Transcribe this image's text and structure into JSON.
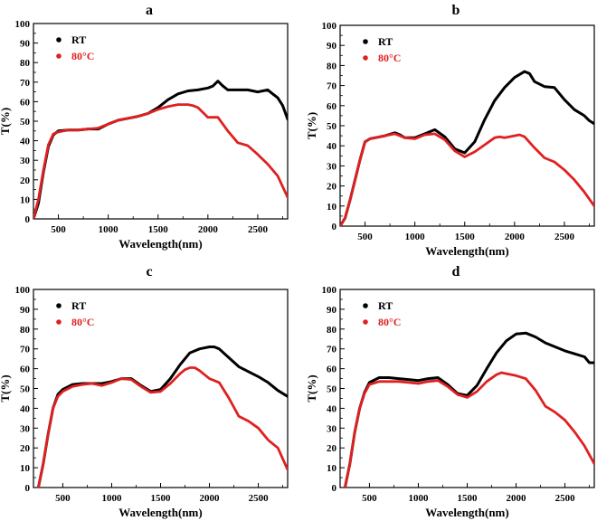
{
  "figure": {
    "panel_letters": [
      "a",
      "b",
      "c",
      "d"
    ]
  },
  "chart_data": [
    {
      "type": "line",
      "panel": "a",
      "title": "a",
      "xlabel": "Wavelength(nm)",
      "ylabel": "T(%)",
      "xlim": [
        250,
        2800
      ],
      "ylim": [
        0,
        100
      ],
      "xticks": [
        500,
        1000,
        1500,
        2000,
        2500
      ],
      "yticks": [
        0,
        10,
        20,
        30,
        40,
        50,
        60,
        70,
        80,
        90,
        100
      ],
      "grid": false,
      "legend_position": "top-left",
      "series": [
        {
          "name": "RT",
          "color": "#000000",
          "x": [
            250,
            300,
            350,
            400,
            450,
            500,
            600,
            700,
            800,
            900,
            1000,
            1100,
            1200,
            1300,
            1400,
            1500,
            1600,
            1700,
            1800,
            1900,
            2000,
            2050,
            2100,
            2150,
            2200,
            2300,
            2400,
            2500,
            2550,
            2600,
            2650,
            2700,
            2750,
            2800
          ],
          "y": [
            0,
            8,
            24,
            37,
            43,
            45,
            45.5,
            45.5,
            46,
            46,
            48.5,
            50.5,
            51.5,
            52.5,
            54,
            57,
            61,
            64,
            65.5,
            66,
            67,
            68,
            70.5,
            68,
            66,
            66,
            66,
            65,
            65.5,
            66,
            64,
            62,
            58,
            51
          ]
        },
        {
          "name": "80°C",
          "color": "#e02020",
          "x": [
            250,
            300,
            350,
            400,
            450,
            500,
            600,
            700,
            800,
            900,
            1000,
            1100,
            1200,
            1300,
            1400,
            1500,
            1600,
            1700,
            1800,
            1850,
            1900,
            2000,
            2100,
            2200,
            2300,
            2400,
            2500,
            2600,
            2700,
            2800
          ],
          "y": [
            0,
            10,
            25,
            38,
            43.5,
            44.5,
            45.5,
            45.5,
            46,
            46.5,
            48.5,
            50.5,
            51.5,
            52.5,
            54,
            56,
            57.5,
            58.5,
            58.5,
            58,
            57,
            52,
            52,
            45,
            39,
            37.5,
            33,
            28,
            22,
            11
          ]
        }
      ]
    },
    {
      "type": "line",
      "panel": "b",
      "title": "b",
      "xlabel": "Wavelength(nm)",
      "ylabel": "T(%)",
      "xlim": [
        250,
        2800
      ],
      "ylim": [
        0,
        100
      ],
      "xticks": [
        500,
        1000,
        1500,
        2000,
        2500
      ],
      "yticks": [
        0,
        10,
        20,
        30,
        40,
        50,
        60,
        70,
        80,
        90,
        100
      ],
      "grid": false,
      "legend_position": "top-left",
      "series": [
        {
          "name": "RT",
          "color": "#000000",
          "x": [
            250,
            300,
            350,
            400,
            450,
            500,
            550,
            600,
            700,
            800,
            850,
            900,
            1000,
            1100,
            1200,
            1300,
            1400,
            1500,
            1600,
            1700,
            1800,
            1900,
            2000,
            2100,
            2150,
            2200,
            2300,
            2400,
            2500,
            2600,
            2700,
            2750,
            2800
          ],
          "y": [
            0,
            4,
            13,
            23,
            33,
            42,
            43.5,
            44,
            45,
            46.5,
            45.5,
            44,
            44,
            46,
            48,
            44.5,
            38.5,
            36.5,
            42,
            53,
            62.5,
            69,
            74,
            77,
            76,
            72,
            69.5,
            69,
            63,
            58,
            55,
            52.5,
            51
          ]
        },
        {
          "name": "80°C",
          "color": "#e02020",
          "x": [
            250,
            300,
            350,
            400,
            450,
            500,
            550,
            600,
            700,
            800,
            900,
            1000,
            1100,
            1200,
            1300,
            1400,
            1500,
            1600,
            1700,
            1800,
            1850,
            1900,
            2000,
            2050,
            2100,
            2200,
            2300,
            2400,
            2500,
            2600,
            2700,
            2800
          ],
          "y": [
            0,
            4,
            13,
            23,
            33,
            42,
            43.5,
            44,
            45,
            46,
            44,
            43.5,
            45.5,
            46,
            43,
            37.5,
            34.5,
            37,
            40.5,
            44,
            44.5,
            44,
            45,
            45.5,
            44.5,
            39,
            34,
            32,
            28,
            23,
            17,
            10
          ]
        }
      ]
    },
    {
      "type": "line",
      "panel": "c",
      "title": "c",
      "xlabel": "Wavelength(nm)",
      "ylabel": "T(%)",
      "xlim": [
        200,
        2800
      ],
      "ylim": [
        0,
        100
      ],
      "xticks": [
        500,
        1000,
        1500,
        2000,
        2500
      ],
      "yticks": [
        0,
        10,
        20,
        30,
        40,
        50,
        60,
        70,
        80,
        90,
        100
      ],
      "grid": false,
      "legend_position": "top-left",
      "series": [
        {
          "name": "RT",
          "color": "#000000",
          "x": [
            250,
            300,
            350,
            400,
            450,
            500,
            600,
            700,
            800,
            900,
            1000,
            1100,
            1200,
            1300,
            1400,
            1500,
            1600,
            1700,
            1800,
            1900,
            2000,
            2050,
            2100,
            2200,
            2300,
            2400,
            2500,
            2600,
            2700,
            2800
          ],
          "y": [
            0,
            12,
            27,
            40,
            47,
            49.5,
            52,
            52.5,
            52.5,
            52.5,
            53.5,
            55,
            55,
            51.5,
            48.5,
            49.5,
            55,
            62,
            68,
            70,
            71,
            71,
            70,
            65.5,
            61,
            58.5,
            56,
            53,
            49,
            46
          ]
        },
        {
          "name": "80°C",
          "color": "#e02020",
          "x": [
            250,
            300,
            350,
            400,
            450,
            500,
            600,
            700,
            800,
            900,
            1000,
            1100,
            1200,
            1300,
            1400,
            1500,
            1600,
            1700,
            1750,
            1800,
            1850,
            1900,
            2000,
            2100,
            2200,
            2300,
            2400,
            2500,
            2600,
            2700,
            2800
          ],
          "y": [
            0,
            12,
            27,
            40,
            46,
            48.5,
            51,
            52,
            52.5,
            51.5,
            53,
            55,
            54.5,
            51,
            48,
            48.5,
            52.5,
            57.5,
            59.5,
            60.5,
            60.5,
            59,
            55,
            53,
            45,
            36,
            33.5,
            30,
            24,
            20,
            9
          ]
        }
      ]
    },
    {
      "type": "line",
      "panel": "d",
      "title": "d",
      "xlabel": "Wavelength(nm)",
      "ylabel": "T(%)",
      "xlim": [
        200,
        2800
      ],
      "ylim": [
        0,
        100
      ],
      "xticks": [
        500,
        1000,
        1500,
        2000,
        2500
      ],
      "yticks": [
        0,
        10,
        20,
        30,
        40,
        50,
        60,
        70,
        80,
        90,
        100
      ],
      "grid": false,
      "legend_position": "top-left",
      "series": [
        {
          "name": "RT",
          "color": "#000000",
          "x": [
            250,
            300,
            350,
            400,
            450,
            500,
            600,
            700,
            800,
            900,
            1000,
            1100,
            1200,
            1300,
            1400,
            1500,
            1600,
            1700,
            1800,
            1900,
            2000,
            2100,
            2200,
            2300,
            2400,
            2500,
            2600,
            2700,
            2750,
            2800
          ],
          "y": [
            0,
            12,
            28,
            40,
            48,
            53,
            55.5,
            55.5,
            55,
            54.5,
            54,
            55,
            55.5,
            52,
            47.5,
            46.5,
            51.5,
            60,
            68,
            74,
            77.5,
            78,
            76,
            73,
            71,
            69,
            67.5,
            66,
            63,
            63
          ]
        },
        {
          "name": "80°C",
          "color": "#e02020",
          "x": [
            250,
            300,
            350,
            400,
            450,
            500,
            600,
            700,
            800,
            900,
            1000,
            1100,
            1200,
            1300,
            1400,
            1500,
            1600,
            1700,
            1800,
            1850,
            1900,
            2000,
            2100,
            2200,
            2300,
            2400,
            2500,
            2600,
            2700,
            2800
          ],
          "y": [
            0,
            12,
            28,
            40,
            47.5,
            52,
            53.5,
            53.5,
            53.5,
            53,
            52.5,
            53.5,
            54,
            51,
            47,
            45.5,
            48.5,
            53.5,
            57,
            58,
            57.5,
            56.5,
            55,
            49,
            41,
            38,
            34,
            28,
            21,
            12
          ]
        }
      ]
    }
  ]
}
